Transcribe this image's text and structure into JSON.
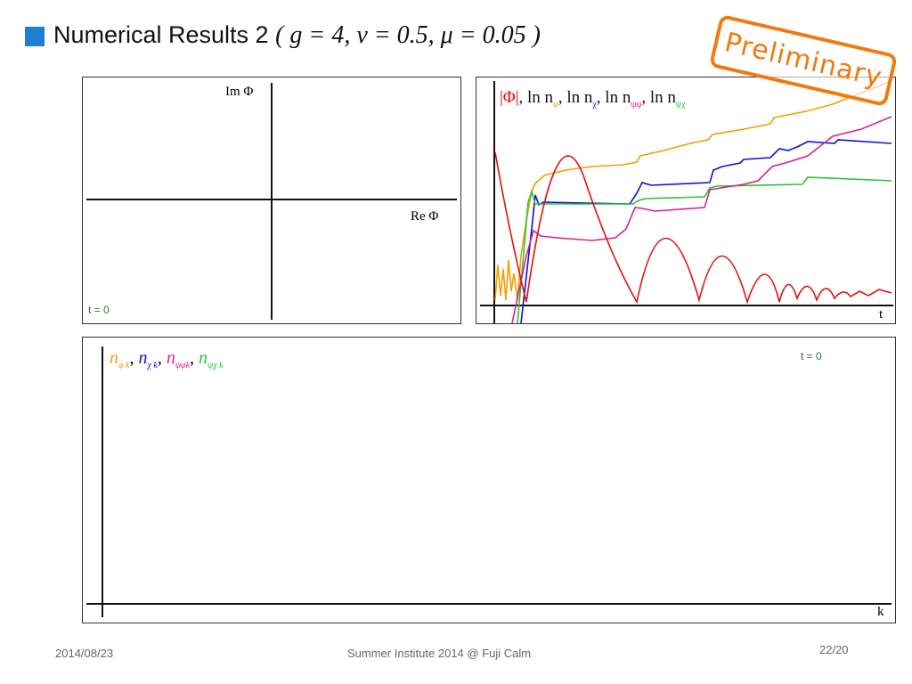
{
  "header": {
    "title": "Numerical Results 2",
    "parameters": "( g = 4,  v = 0.5,  μ = 0.05 )",
    "stamp": "Preliminary"
  },
  "phase_plot": {
    "y_axis_label": "Im Φ",
    "x_axis_label": "Re Φ",
    "time_label": "t = 0"
  },
  "time_plot": {
    "legend": [
      {
        "main": "|Φ|",
        "sub": ""
      },
      {
        "main": "ln n",
        "sub": "φ"
      },
      {
        "main": "ln n",
        "sub": "χ"
      },
      {
        "main": "ln n",
        "sub": "ψφ"
      },
      {
        "main": "ln n",
        "sub": "ψχ"
      }
    ],
    "separator": ",",
    "x_axis_label": "t"
  },
  "spectrum_plot": {
    "legend": [
      {
        "main": "n",
        "sub": "φ k"
      },
      {
        "main": "n",
        "sub": "χ k"
      },
      {
        "main": "n",
        "sub": "ψφk"
      },
      {
        "main": "n",
        "sub": "ψχ k"
      }
    ],
    "separator": ",",
    "time_label": "t = 0",
    "x_axis_label": "k"
  },
  "footer": {
    "date": "2014/08/23",
    "event": "Summer Institute 2014 @ Fuji Calm",
    "page": "22/20"
  }
}
